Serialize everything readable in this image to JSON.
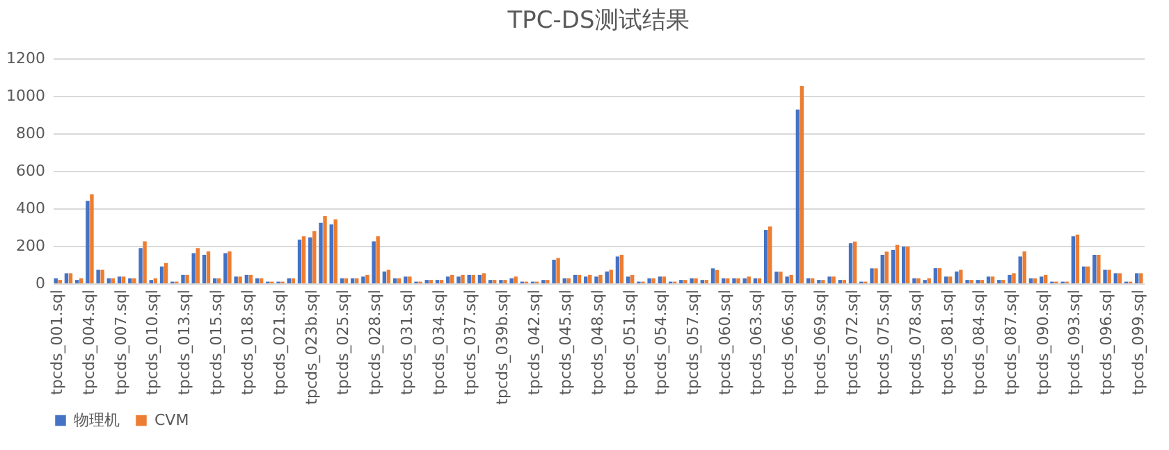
{
  "chart_data": {
    "type": "bar",
    "title": "TPC-DS测试结果",
    "categories": [
      "tpcds_001.sql",
      null,
      null,
      "tpcds_004.sql",
      null,
      null,
      "tpcds_007.sql",
      null,
      null,
      "tpcds_010.sql",
      null,
      null,
      "tpcds_013.sql",
      null,
      null,
      "tpcds_015.sql",
      null,
      null,
      "tpcds_018.sql",
      null,
      null,
      "tpcds_021.sql",
      null,
      null,
      "tpcds_023b.sql",
      null,
      null,
      "tpcds_025.sql",
      null,
      null,
      "tpcds_028.sql",
      null,
      null,
      "tpcds_031.sql",
      null,
      null,
      "tpcds_034.sql",
      null,
      null,
      "tpcds_037.sql",
      null,
      null,
      "tpcds_039b.sql",
      null,
      null,
      "tpcds_042.sql",
      null,
      null,
      "tpcds_045.sql",
      null,
      null,
      "tpcds_048.sql",
      null,
      null,
      "tpcds_051.sql",
      null,
      null,
      "tpcds_054.sql",
      null,
      null,
      "tpcds_057.sql",
      null,
      null,
      "tpcds_060.sql",
      null,
      null,
      "tpcds_063.sql",
      null,
      null,
      "tpcds_066.sql",
      null,
      null,
      "tpcds_069.sql",
      null,
      null,
      "tpcds_072.sql",
      null,
      null,
      "tpcds_075.sql",
      null,
      null,
      "tpcds_078.sql",
      null,
      null,
      "tpcds_081.sql",
      null,
      null,
      "tpcds_084.sql",
      null,
      null,
      "tpcds_087.sql",
      null,
      null,
      "tpcds_090.sql",
      null,
      null,
      "tpcds_093.sql",
      null,
      null,
      "tpcds_096.sql",
      null,
      null,
      "tpcds_099.sql"
    ],
    "series": [
      {
        "name": "物理机",
        "color": "#4472c4",
        "values": [
          27,
          54,
          18,
          440,
          72,
          27,
          36,
          27,
          188,
          18,
          90,
          9,
          45,
          161,
          152,
          27,
          161,
          36,
          45,
          27,
          9,
          9,
          27,
          233,
          245,
          323,
          314,
          27,
          27,
          36,
          224,
          63,
          27,
          36,
          9,
          18,
          18,
          36,
          36,
          45,
          45,
          18,
          18,
          27,
          9,
          9,
          18,
          126,
          27,
          45,
          36,
          36,
          63,
          143,
          36,
          9,
          27,
          36,
          9,
          18,
          27,
          18,
          80,
          27,
          27,
          27,
          27,
          285,
          62,
          36,
          927,
          27,
          18,
          36,
          18,
          214,
          9,
          80,
          152,
          178,
          196,
          27,
          18,
          81,
          36,
          63,
          18,
          18,
          36,
          18,
          45,
          143,
          27,
          36,
          9,
          9,
          251,
          90,
          152,
          72,
          54,
          9,
          54
        ]
      },
      {
        "name": "CVM",
        "color": "#ed7d31",
        "values": [
          18,
          54,
          27,
          475,
          72,
          27,
          36,
          27,
          224,
          27,
          108,
          9,
          45,
          188,
          170,
          27,
          170,
          36,
          45,
          27,
          9,
          9,
          27,
          251,
          278,
          359,
          341,
          27,
          27,
          45,
          251,
          72,
          27,
          36,
          9,
          18,
          18,
          45,
          45,
          45,
          54,
          18,
          18,
          36,
          9,
          9,
          18,
          135,
          27,
          45,
          45,
          45,
          72,
          152,
          45,
          9,
          27,
          36,
          9,
          18,
          27,
          18,
          71,
          27,
          27,
          36,
          27,
          303,
          62,
          45,
          1052,
          27,
          18,
          36,
          18,
          223,
          9,
          80,
          169,
          205,
          196,
          27,
          27,
          81,
          36,
          72,
          18,
          18,
          36,
          18,
          54,
          170,
          27,
          45,
          9,
          9,
          260,
          90,
          152,
          72,
          54,
          9,
          54
        ]
      }
    ],
    "ylim": [
      0,
      1200
    ],
    "yticks": [
      0,
      200,
      400,
      600,
      800,
      1000,
      1200
    ],
    "grid": true,
    "legend": "bottom"
  }
}
